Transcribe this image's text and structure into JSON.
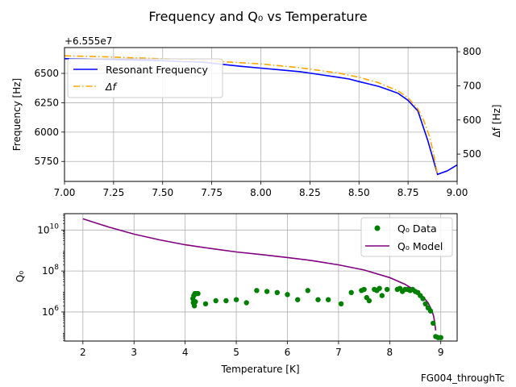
{
  "figure": {
    "title": "Frequency and Q₀ vs Temperature",
    "footer": "FG004_throughTc"
  },
  "chart_data": [
    {
      "type": "line",
      "panel": "top",
      "xlim": [
        7.0,
        9.0
      ],
      "xticks": [
        7.0,
        7.25,
        7.5,
        7.75,
        8.0,
        8.25,
        8.5,
        8.75,
        9.0
      ],
      "xtick_labels": [
        "7.00",
        "7.25",
        "7.50",
        "7.75",
        "8.00",
        "8.25",
        "8.50",
        "8.75",
        "9.00"
      ],
      "offset_label": "+6.555e7",
      "ylabel": "Frequency [Hz]",
      "ylim": [
        5580,
        6720
      ],
      "yticks": [
        5750,
        6000,
        6250,
        6500
      ],
      "y2label": "Δf [Hz]",
      "y2lim": [
        420,
        812
      ],
      "y2ticks": [
        500,
        600,
        700,
        800
      ],
      "grid": true,
      "legend": "upper-left",
      "series": [
        {
          "name": "Resonant Frequency",
          "axis": "left",
          "color": "#0000ff",
          "style": "solid",
          "x": [
            7.0,
            7.1,
            7.2,
            7.3,
            7.4,
            7.5,
            7.6,
            7.7,
            7.8,
            7.9,
            8.0,
            8.1,
            8.2,
            8.3,
            8.4,
            8.45,
            8.5,
            8.55,
            8.6,
            8.65,
            8.7,
            8.75,
            8.8,
            8.85,
            8.9,
            8.95,
            9.0
          ],
          "y": [
            6625,
            6624,
            6620,
            6615,
            6612,
            6608,
            6600,
            6596,
            6578,
            6560,
            6545,
            6530,
            6515,
            6490,
            6465,
            6452,
            6430,
            6410,
            6390,
            6360,
            6330,
            6270,
            6180,
            5930,
            5640,
            5670,
            5720
          ]
        },
        {
          "name": "Δf",
          "axis": "right",
          "color": "#ffa500",
          "style": "dashdot",
          "x": [
            7.0,
            7.2,
            7.4,
            7.6,
            7.8,
            8.0,
            8.2,
            8.4,
            8.5,
            8.6,
            8.7,
            8.75,
            8.8,
            8.83,
            8.86,
            8.88,
            8.9
          ],
          "y": [
            788,
            785,
            781,
            777,
            771,
            764,
            753,
            737,
            725,
            709,
            685,
            665,
            632,
            598,
            550,
            500,
            440
          ]
        }
      ]
    },
    {
      "type": "scatter",
      "panel": "bottom",
      "xlabel": "Temperature [K]",
      "xlim": [
        1.64,
        9.32
      ],
      "xticks": [
        2,
        3,
        4,
        5,
        6,
        7,
        8,
        9
      ],
      "xtick_labels": [
        "2",
        "3",
        "4",
        "5",
        "6",
        "7",
        "8",
        "9"
      ],
      "ylabel": "Q₀",
      "yscale": "log",
      "ylim_log10": [
        4.58,
        10.8
      ],
      "yticks_log10": [
        6,
        8,
        10
      ],
      "ytick_labels": [
        "10^6",
        "10^8",
        "10^10"
      ],
      "grid": true,
      "legend": "upper-right",
      "series": [
        {
          "name": "Q₀ Data",
          "kind": "scatter",
          "color": "#008000",
          "x": [
            4.15,
            4.16,
            4.17,
            4.18,
            4.19,
            4.2,
            4.22,
            4.25,
            4.4,
            4.6,
            4.8,
            5.0,
            5.2,
            5.4,
            5.6,
            5.8,
            6.0,
            6.2,
            6.4,
            6.6,
            6.8,
            7.05,
            7.25,
            7.45,
            7.5,
            7.55,
            7.6,
            7.7,
            7.75,
            7.8,
            7.85,
            7.95,
            8.15,
            8.2,
            8.25,
            8.3,
            8.35,
            8.4,
            8.45,
            8.5,
            8.55,
            8.6,
            8.65,
            8.7,
            8.75,
            8.8,
            8.85,
            8.9,
            8.95,
            9.0
          ],
          "log10_y": [
            6.65,
            6.45,
            6.8,
            6.3,
            6.9,
            6.5,
            6.9,
            6.9,
            6.4,
            6.55,
            6.55,
            6.6,
            6.45,
            7.05,
            7.0,
            6.95,
            6.85,
            6.6,
            7.05,
            6.6,
            6.6,
            6.4,
            6.95,
            7.05,
            7.1,
            6.7,
            6.55,
            7.1,
            7.05,
            7.15,
            6.8,
            7.1,
            7.1,
            7.15,
            7.0,
            7.1,
            7.1,
            7.05,
            7.1,
            7.0,
            6.95,
            6.8,
            6.65,
            6.4,
            6.2,
            6.05,
            5.45,
            4.8,
            4.75,
            4.75
          ]
        },
        {
          "name": "Q₀ Model",
          "kind": "line",
          "color": "#800080",
          "x": [
            2.0,
            2.5,
            3.0,
            3.5,
            4.0,
            4.5,
            5.0,
            5.5,
            6.0,
            6.5,
            7.0,
            7.5,
            8.0,
            8.3,
            8.5,
            8.65,
            8.75,
            8.82,
            8.86,
            8.88,
            8.9
          ],
          "log10_y": [
            10.55,
            10.15,
            9.8,
            9.52,
            9.28,
            9.1,
            8.93,
            8.8,
            8.66,
            8.5,
            8.3,
            8.05,
            7.68,
            7.35,
            7.05,
            6.75,
            6.45,
            6.1,
            5.8,
            5.5,
            5.1
          ]
        }
      ]
    }
  ]
}
